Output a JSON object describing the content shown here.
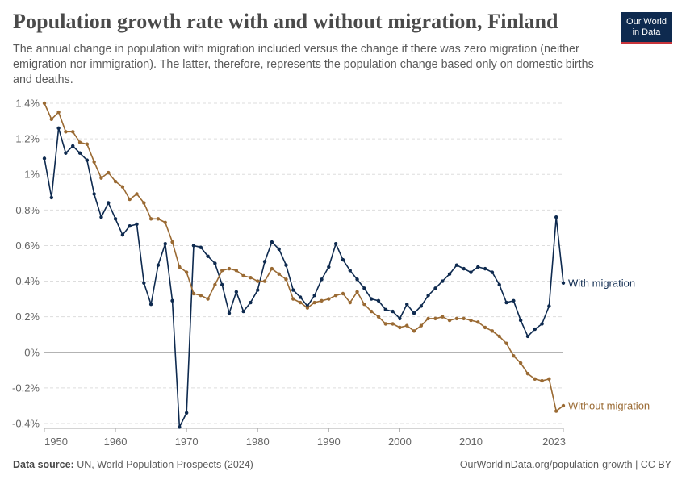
{
  "header": {
    "title": "Population growth rate with and without migration, Finland",
    "subtitle": "The annual change in population with migration included versus the change if there was zero migration (neither emigration nor immigration). The latter, therefore, represents the population change based only on domestic births and deaths.",
    "logo_line1": "Our World",
    "logo_line2": "in Data"
  },
  "footer": {
    "source_label": "Data source:",
    "source_text": "UN, World Population Prospects (2024)",
    "link_text": "OurWorldinData.org/population-growth | CC BY"
  },
  "colors": {
    "with_migration": "#0e2a4f",
    "without_migration": "#9a6a33",
    "grid": "#dddddd",
    "axis": "#aaaaaa"
  },
  "chart_data": {
    "type": "line",
    "xlim": [
      1950,
      2023
    ],
    "ylim": [
      -0.4,
      1.4
    ],
    "grid": true,
    "x_ticks": [
      {
        "value": 1950,
        "label": "1950"
      },
      {
        "value": 1960,
        "label": "1960"
      },
      {
        "value": 1970,
        "label": "1970"
      },
      {
        "value": 1980,
        "label": "1980"
      },
      {
        "value": 1990,
        "label": "1990"
      },
      {
        "value": 2000,
        "label": "2000"
      },
      {
        "value": 2010,
        "label": "2010"
      },
      {
        "value": 2023,
        "label": "2023"
      }
    ],
    "y_ticks": [
      {
        "value": -0.4,
        "label": "-0.4%"
      },
      {
        "value": -0.2,
        "label": "-0.2%"
      },
      {
        "value": 0,
        "label": "0%"
      },
      {
        "value": 0.2,
        "label": "0.2%"
      },
      {
        "value": 0.4,
        "label": "0.4%"
      },
      {
        "value": 0.6,
        "label": "0.6%"
      },
      {
        "value": 0.8,
        "label": "0.8%"
      },
      {
        "value": 1.0,
        "label": "1%"
      },
      {
        "value": 1.2,
        "label": "1.2%"
      },
      {
        "value": 1.4,
        "label": "1.4%"
      }
    ],
    "x": [
      1950,
      1951,
      1952,
      1953,
      1954,
      1955,
      1956,
      1957,
      1958,
      1959,
      1960,
      1961,
      1962,
      1963,
      1964,
      1965,
      1966,
      1967,
      1968,
      1969,
      1970,
      1971,
      1972,
      1973,
      1974,
      1975,
      1976,
      1977,
      1978,
      1979,
      1980,
      1981,
      1982,
      1983,
      1984,
      1985,
      1986,
      1987,
      1988,
      1989,
      1990,
      1991,
      1992,
      1993,
      1994,
      1995,
      1996,
      1997,
      1998,
      1999,
      2000,
      2001,
      2002,
      2003,
      2004,
      2005,
      2006,
      2007,
      2008,
      2009,
      2010,
      2011,
      2012,
      2013,
      2014,
      2015,
      2016,
      2017,
      2018,
      2019,
      2020,
      2021,
      2022,
      2023
    ],
    "series": [
      {
        "name": "With migration",
        "key": "with_migration",
        "values": [
          1.09,
          0.87,
          1.26,
          1.12,
          1.16,
          1.12,
          1.08,
          0.89,
          0.76,
          0.84,
          0.75,
          0.66,
          0.71,
          0.72,
          0.39,
          0.27,
          0.49,
          0.61,
          0.29,
          -0.42,
          -0.34,
          0.6,
          0.59,
          0.54,
          0.5,
          0.38,
          0.22,
          0.34,
          0.23,
          0.28,
          0.35,
          0.51,
          0.62,
          0.58,
          0.49,
          0.35,
          0.31,
          0.26,
          0.32,
          0.41,
          0.48,
          0.61,
          0.52,
          0.46,
          0.41,
          0.36,
          0.3,
          0.29,
          0.24,
          0.23,
          0.19,
          0.27,
          0.22,
          0.26,
          0.32,
          0.36,
          0.4,
          0.44,
          0.49,
          0.47,
          0.45,
          0.48,
          0.47,
          0.45,
          0.38,
          0.28,
          0.29,
          0.18,
          0.09,
          0.13,
          0.16,
          0.26,
          0.76,
          0.39
        ]
      },
      {
        "name": "Without migration",
        "key": "without_migration",
        "values": [
          1.4,
          1.31,
          1.35,
          1.24,
          1.24,
          1.18,
          1.17,
          1.07,
          0.98,
          1.01,
          0.96,
          0.93,
          0.86,
          0.89,
          0.84,
          0.75,
          0.75,
          0.73,
          0.62,
          0.48,
          0.45,
          0.33,
          0.32,
          0.3,
          0.38,
          0.46,
          0.47,
          0.46,
          0.43,
          0.42,
          0.4,
          0.4,
          0.47,
          0.44,
          0.41,
          0.3,
          0.28,
          0.25,
          0.28,
          0.29,
          0.3,
          0.32,
          0.33,
          0.28,
          0.34,
          0.27,
          0.23,
          0.2,
          0.16,
          0.16,
          0.14,
          0.15,
          0.12,
          0.15,
          0.19,
          0.19,
          0.2,
          0.18,
          0.19,
          0.19,
          0.18,
          0.17,
          0.14,
          0.12,
          0.09,
          0.05,
          -0.02,
          -0.06,
          -0.12,
          -0.15,
          -0.16,
          -0.15,
          -0.33,
          -0.3
        ]
      }
    ]
  }
}
